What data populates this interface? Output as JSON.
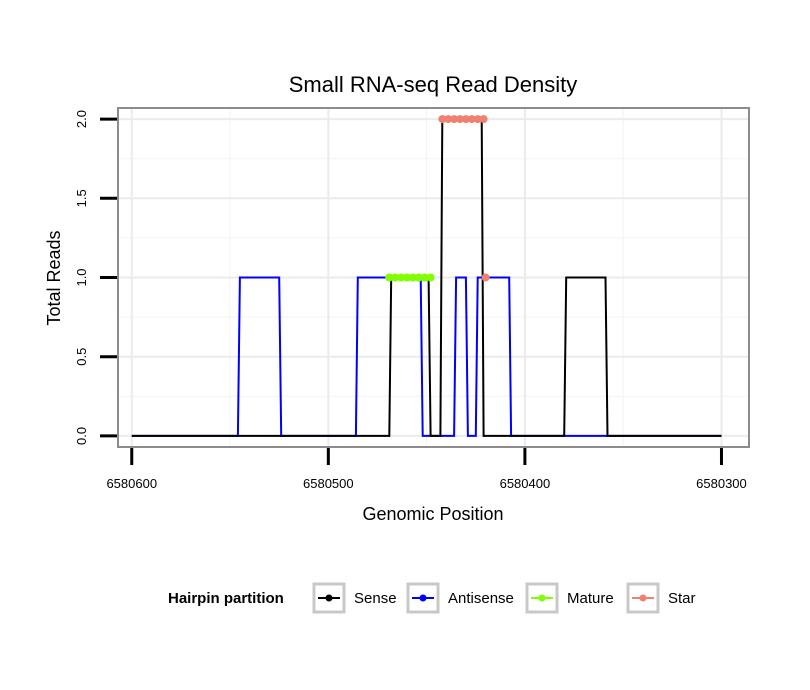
{
  "chart_data": {
    "type": "line",
    "title": "Small RNA-seq Read Density",
    "xlabel": "Genomic Position",
    "ylabel": "Total Reads",
    "xlim": [
      6580607,
      6580286
    ],
    "ylim": [
      -0.07,
      2.07
    ],
    "x_reversed": true,
    "xticks": [
      6580600,
      6580500,
      6580400,
      6580300
    ],
    "xtick_labels": [
      "6580600",
      "6580500",
      "6580400",
      "6580300"
    ],
    "yticks": [
      0.0,
      0.5,
      1.0,
      1.5,
      2.0
    ],
    "ytick_labels": [
      "0.0",
      "0.5",
      "1.0",
      "1.5",
      "2.0"
    ],
    "grid": true,
    "legend": {
      "title": "Hairpin partition",
      "position": "bottom",
      "entries": [
        "Sense",
        "Antisense",
        "Mature",
        "Star"
      ]
    },
    "series": [
      {
        "name": "Antisense",
        "color": "#0000ff",
        "style": "line",
        "x": [
          6580600,
          6580546,
          6580545,
          6580525,
          6580524,
          6580486,
          6580485,
          6580453,
          6580452,
          6580436,
          6580435,
          6580430,
          6580429,
          6580425,
          6580424,
          6580419,
          6580418,
          6580408,
          6580407,
          6580300
        ],
        "y": [
          0,
          0,
          1,
          1,
          0,
          0,
          1,
          1,
          0,
          0,
          1,
          1,
          0,
          0,
          1,
          1,
          1,
          1,
          0,
          0
        ]
      },
      {
        "name": "Sense",
        "color": "#000000",
        "style": "line",
        "x": [
          6580600,
          6580469,
          6580468,
          6580449,
          6580448,
          6580443,
          6580442,
          6580422,
          6580421,
          6580380,
          6580379,
          6580359,
          6580358,
          6580300
        ],
        "y": [
          0,
          0,
          1,
          1,
          0,
          0,
          2,
          2,
          0,
          0,
          1,
          1,
          0,
          0
        ]
      },
      {
        "name": "Mature",
        "color": "#7fff00",
        "style": "points",
        "x": [
          6580469,
          6580466,
          6580463,
          6580460,
          6580457,
          6580454,
          6580451,
          6580448
        ],
        "y": [
          1,
          1,
          1,
          1,
          1,
          1,
          1,
          1
        ]
      },
      {
        "name": "Star",
        "color": "#f08070",
        "style": "points",
        "x": [
          6580442,
          6580439,
          6580436,
          6580433,
          6580430,
          6580427,
          6580424,
          6580421,
          6580420
        ],
        "y": [
          2,
          2,
          2,
          2,
          2,
          2,
          2,
          2,
          1
        ]
      }
    ]
  }
}
